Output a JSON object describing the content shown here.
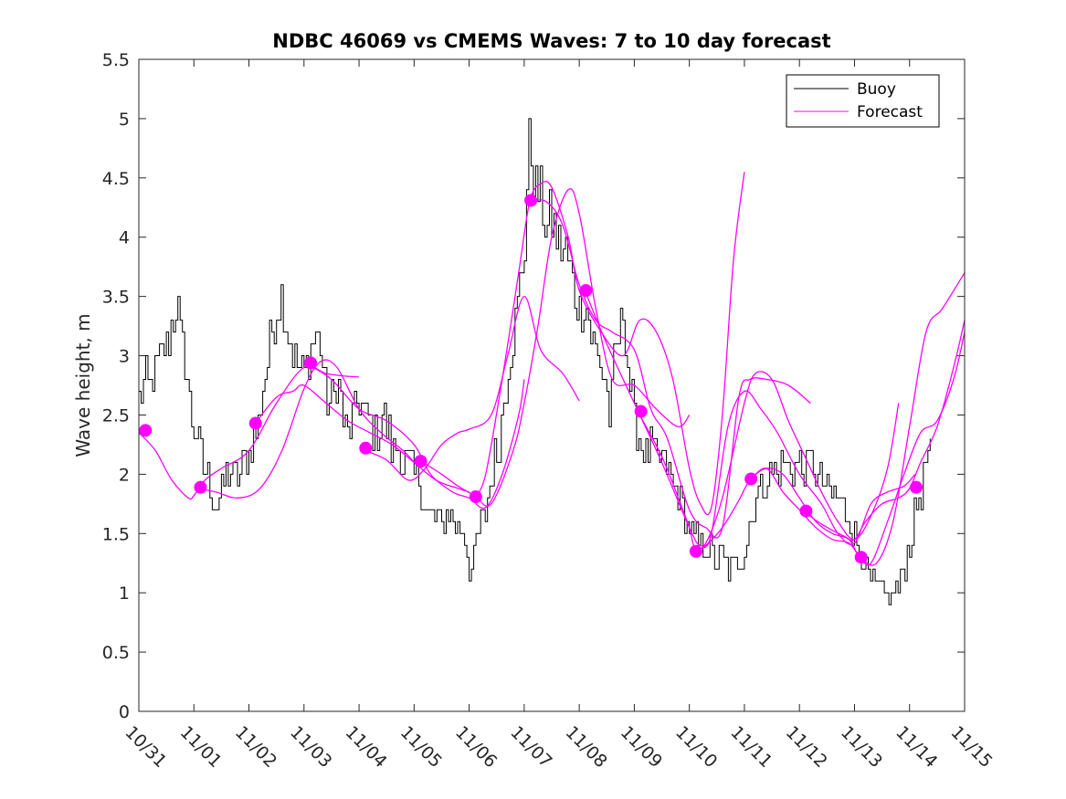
{
  "chart_data": {
    "type": "line",
    "title": "NDBC 46069 vs CMEMS Waves: 7 to 10 day forecast",
    "xlabel": "",
    "ylabel": "Wave height, m",
    "xlim": [
      0,
      15
    ],
    "ylim": [
      0,
      5.5
    ],
    "x_ticks": [
      0,
      1,
      2,
      3,
      4,
      5,
      6,
      7,
      8,
      9,
      10,
      11,
      12,
      13,
      14,
      15
    ],
    "x_tick_labels": [
      "10/31",
      "11/01",
      "11/02",
      "11/03",
      "11/04",
      "11/05",
      "11/06",
      "11/07",
      "11/08",
      "11/09",
      "11/10",
      "11/11",
      "11/12",
      "11/13",
      "11/14",
      "11/15"
    ],
    "y_ticks": [
      0,
      0.5,
      1,
      1.5,
      2,
      2.5,
      3,
      3.5,
      4,
      4.5,
      5,
      5.5
    ],
    "y_tick_labels": [
      "0",
      "0.5",
      "1",
      "1.5",
      "2",
      "2.5",
      "3",
      "3.5",
      "4",
      "4.5",
      "5",
      "5.5"
    ],
    "legend": {
      "position": "top-right",
      "entries": [
        {
          "label": "Buoy",
          "color": "#000000"
        },
        {
          "label": "Forecast",
          "color": "#ff00ff"
        }
      ]
    },
    "buoy_color": "#000000",
    "forecast_color": "#ff00ff",
    "buoy_anchors": [
      [
        0.0,
        2.6
      ],
      [
        0.1,
        2.8
      ],
      [
        0.2,
        2.75
      ],
      [
        0.35,
        2.95
      ],
      [
        0.5,
        3.1
      ],
      [
        0.6,
        3.3
      ],
      [
        0.67,
        3.5
      ],
      [
        0.75,
        3.1
      ],
      [
        0.85,
        2.9
      ],
      [
        0.95,
        2.5
      ],
      [
        1.05,
        2.3
      ],
      [
        1.15,
        2.1
      ],
      [
        1.25,
        1.95
      ],
      [
        1.35,
        1.8
      ],
      [
        1.4,
        1.7
      ],
      [
        1.5,
        1.85
      ],
      [
        1.6,
        2.0
      ],
      [
        1.75,
        1.95
      ],
      [
        1.85,
        2.05
      ],
      [
        2.0,
        2.15
      ],
      [
        2.15,
        2.4
      ],
      [
        2.3,
        2.85
      ],
      [
        2.4,
        3.2
      ],
      [
        2.5,
        3.4
      ],
      [
        2.6,
        3.55
      ],
      [
        2.7,
        3.2
      ],
      [
        2.8,
        3.0
      ],
      [
        2.9,
        2.9
      ],
      [
        3.0,
        2.85
      ],
      [
        3.1,
        3.0
      ],
      [
        3.2,
        3.2
      ],
      [
        3.3,
        3.1
      ],
      [
        3.4,
        2.6
      ],
      [
        3.5,
        2.6
      ],
      [
        3.6,
        2.8
      ],
      [
        3.7,
        2.5
      ],
      [
        3.8,
        2.3
      ],
      [
        3.9,
        2.5
      ],
      [
        4.0,
        2.6
      ],
      [
        4.1,
        2.5
      ],
      [
        4.2,
        2.4
      ],
      [
        4.3,
        2.3
      ],
      [
        4.4,
        2.5
      ],
      [
        4.5,
        2.4
      ],
      [
        4.6,
        2.2
      ],
      [
        4.7,
        2.2
      ],
      [
        4.8,
        2.1
      ],
      [
        4.9,
        2.1
      ],
      [
        5.0,
        2.0
      ],
      [
        5.1,
        1.9
      ],
      [
        5.2,
        1.7
      ],
      [
        5.3,
        1.6
      ],
      [
        5.4,
        1.65
      ],
      [
        5.5,
        1.55
      ],
      [
        5.6,
        1.75
      ],
      [
        5.7,
        1.6
      ],
      [
        5.8,
        1.5
      ],
      [
        5.9,
        1.5
      ],
      [
        6.0,
        1.2
      ],
      [
        6.05,
        1.15
      ],
      [
        6.1,
        1.35
      ],
      [
        6.2,
        1.55
      ],
      [
        6.3,
        1.7
      ],
      [
        6.4,
        2.0
      ],
      [
        6.5,
        2.2
      ],
      [
        6.6,
        2.5
      ],
      [
        6.7,
        2.9
      ],
      [
        6.8,
        3.2
      ],
      [
        6.9,
        3.5
      ],
      [
        7.0,
        4.0
      ],
      [
        7.05,
        4.5
      ],
      [
        7.1,
        4.8
      ],
      [
        7.15,
        4.6
      ],
      [
        7.2,
        4.4
      ],
      [
        7.3,
        4.3
      ],
      [
        7.4,
        4.05
      ],
      [
        7.5,
        4.1
      ],
      [
        7.6,
        3.95
      ],
      [
        7.7,
        3.9
      ],
      [
        7.8,
        3.8
      ],
      [
        7.9,
        3.5
      ],
      [
        8.0,
        3.4
      ],
      [
        8.1,
        3.5
      ],
      [
        8.2,
        3.2
      ],
      [
        8.3,
        3.05
      ],
      [
        8.4,
        2.9
      ],
      [
        8.5,
        2.7
      ],
      [
        8.55,
        2.4
      ],
      [
        8.6,
        2.8
      ],
      [
        8.7,
        3.1
      ],
      [
        8.8,
        3.4
      ],
      [
        8.9,
        2.8
      ],
      [
        9.0,
        2.45
      ],
      [
        9.1,
        2.3
      ],
      [
        9.2,
        2.2
      ],
      [
        9.3,
        2.25
      ],
      [
        9.4,
        2.1
      ],
      [
        9.5,
        2.15
      ],
      [
        9.6,
        2.0
      ],
      [
        9.7,
        1.9
      ],
      [
        9.8,
        1.8
      ],
      [
        9.9,
        1.65
      ],
      [
        10.0,
        1.55
      ],
      [
        10.1,
        1.45
      ],
      [
        10.2,
        1.4
      ],
      [
        10.3,
        1.35
      ],
      [
        10.4,
        1.35
      ],
      [
        10.5,
        1.25
      ],
      [
        10.6,
        1.3
      ],
      [
        10.7,
        1.2
      ],
      [
        10.8,
        1.25
      ],
      [
        10.9,
        1.3
      ],
      [
        11.0,
        1.4
      ],
      [
        11.1,
        1.6
      ],
      [
        11.2,
        1.8
      ],
      [
        11.3,
        1.9
      ],
      [
        11.4,
        2.0
      ],
      [
        11.5,
        2.05
      ],
      [
        11.6,
        2.0
      ],
      [
        11.7,
        2.1
      ],
      [
        11.8,
        2.0
      ],
      [
        11.9,
        2.05
      ],
      [
        12.0,
        2.1
      ],
      [
        12.1,
        2.0
      ],
      [
        12.2,
        2.15
      ],
      [
        12.3,
        2.0
      ],
      [
        12.4,
        1.9
      ],
      [
        12.5,
        1.85
      ],
      [
        12.6,
        1.8
      ],
      [
        12.7,
        1.85
      ],
      [
        12.8,
        1.7
      ],
      [
        12.9,
        1.6
      ],
      [
        13.0,
        1.5
      ],
      [
        13.1,
        1.35
      ],
      [
        13.2,
        1.2
      ],
      [
        13.3,
        1.1
      ],
      [
        13.4,
        1.05
      ],
      [
        13.5,
        1.0
      ],
      [
        13.6,
        0.98
      ],
      [
        13.65,
        0.9
      ],
      [
        13.7,
        1.0
      ],
      [
        13.8,
        1.05
      ],
      [
        13.9,
        1.2
      ],
      [
        14.0,
        1.4
      ],
      [
        14.1,
        1.65
      ],
      [
        14.2,
        1.85
      ],
      [
        14.3,
        2.1
      ],
      [
        14.4,
        2.2
      ]
    ],
    "forecast_series": [
      {
        "name": "run1",
        "x": [
          0,
          0.3,
          0.6,
          0.9,
          1.0,
          1.2,
          1.5,
          2.0,
          2.5,
          3.0,
          3.4,
          3.7,
          4.0
        ],
        "y": [
          2.35,
          2.2,
          1.95,
          1.8,
          1.82,
          1.95,
          2.05,
          2.2,
          2.6,
          2.9,
          2.85,
          2.83,
          2.82
        ]
      },
      {
        "name": "run2",
        "x": [
          1.1,
          1.4,
          1.8,
          2.2,
          2.6,
          3.0,
          3.3,
          3.6,
          4.0,
          4.4,
          4.8,
          5.0
        ],
        "y": [
          1.88,
          1.85,
          1.8,
          1.88,
          2.2,
          2.72,
          2.95,
          2.9,
          2.55,
          2.35,
          2.2,
          2.1
        ]
      },
      {
        "name": "run3",
        "x": [
          2.1,
          2.5,
          2.8,
          3.0,
          3.4,
          3.8,
          4.2,
          4.6,
          5.0,
          5.4,
          5.8,
          6.0
        ],
        "y": [
          2.42,
          2.65,
          2.7,
          2.75,
          2.6,
          2.45,
          2.35,
          2.25,
          2.1,
          1.95,
          1.88,
          1.85
        ]
      },
      {
        "name": "run4",
        "x": [
          3.1,
          3.5,
          4.0,
          4.5,
          5.0,
          5.3,
          5.7,
          6.0,
          6.3,
          6.6,
          6.9,
          7.0
        ],
        "y": [
          2.92,
          2.8,
          2.55,
          2.45,
          2.25,
          2.0,
          1.85,
          1.8,
          1.72,
          2.0,
          2.5,
          2.8
        ]
      },
      {
        "name": "run5",
        "x": [
          4.1,
          4.5,
          4.9,
          5.2,
          5.5,
          5.8,
          6.0,
          6.4,
          6.7,
          7.0,
          7.3,
          7.7,
          8.0
        ],
        "y": [
          2.2,
          2.12,
          1.95,
          2.05,
          2.25,
          2.35,
          2.38,
          2.5,
          3.0,
          3.5,
          3.05,
          2.85,
          2.62
        ]
      },
      {
        "name": "run6",
        "x": [
          5.1,
          5.5,
          5.8,
          6.1,
          6.4,
          6.8,
          7.0,
          7.25,
          7.5,
          7.8,
          8.0,
          8.3,
          8.6,
          9.0,
          9.4,
          9.8,
          10.0
        ],
        "y": [
          2.12,
          2.0,
          1.9,
          1.82,
          1.75,
          2.2,
          2.6,
          3.25,
          4.0,
          4.4,
          4.2,
          3.4,
          2.8,
          2.75,
          2.55,
          2.4,
          2.5
        ]
      },
      {
        "name": "run7",
        "x": [
          6.1,
          6.3,
          6.6,
          6.9,
          7.1,
          7.3,
          7.5,
          7.8,
          8.0,
          8.4,
          8.8,
          9.1,
          9.4,
          9.7,
          10.0,
          10.2,
          10.4,
          10.6,
          10.8,
          11.0
        ],
        "y": [
          1.8,
          2.0,
          2.8,
          3.7,
          4.3,
          4.45,
          4.42,
          4.0,
          3.55,
          3.2,
          3.0,
          3.3,
          3.2,
          2.8,
          2.05,
          1.75,
          1.72,
          2.5,
          3.8,
          4.55
        ]
      },
      {
        "name": "run8",
        "x": [
          7.1,
          7.4,
          7.7,
          8.0,
          8.3,
          8.6,
          9.0,
          9.3,
          9.6,
          10.0,
          10.3,
          10.6,
          10.9,
          11.1,
          11.4,
          11.8,
          12.2
        ],
        "y": [
          4.3,
          4.3,
          4.1,
          3.6,
          3.3,
          3.2,
          3.05,
          2.55,
          2.3,
          1.7,
          1.55,
          1.55,
          2.65,
          2.8,
          2.8,
          2.75,
          2.6
        ]
      },
      {
        "name": "run9",
        "x": [
          8.1,
          8.5,
          9.0,
          9.5,
          10.0,
          10.2,
          10.4,
          10.7,
          11.0,
          11.3,
          11.6,
          12.0,
          12.4,
          12.7,
          13.0,
          13.3,
          13.6,
          13.9,
          14.1
        ],
        "y": [
          3.55,
          3.1,
          2.6,
          2.1,
          1.55,
          1.4,
          1.5,
          2.4,
          2.7,
          2.55,
          2.35,
          2.0,
          1.75,
          1.5,
          1.42,
          1.75,
          1.85,
          1.9,
          2.0
        ]
      },
      {
        "name": "run10",
        "x": [
          9.1,
          9.5,
          9.8,
          10.0,
          10.1,
          10.3,
          10.6,
          11.0,
          11.2,
          11.5,
          11.8,
          12.1,
          12.4,
          12.7,
          13.0,
          13.3,
          13.6,
          13.8
        ],
        "y": [
          2.5,
          2.15,
          1.8,
          1.55,
          1.38,
          1.42,
          1.8,
          2.6,
          2.85,
          2.8,
          2.45,
          2.15,
          1.85,
          1.6,
          1.45,
          1.65,
          2.05,
          2.6
        ]
      },
      {
        "name": "run11",
        "x": [
          10.1,
          10.3,
          10.6,
          10.9,
          11.1,
          11.4,
          11.7,
          12.0,
          12.3,
          12.6,
          12.9,
          13.1,
          13.4,
          13.7,
          14.0,
          14.3,
          14.6,
          15.0
        ],
        "y": [
          1.35,
          1.4,
          1.55,
          1.78,
          1.95,
          2.05,
          2.0,
          1.8,
          1.6,
          1.5,
          1.45,
          1.3,
          1.25,
          1.6,
          2.4,
          3.2,
          3.4,
          3.7
        ]
      },
      {
        "name": "run12",
        "x": [
          11.1,
          11.4,
          11.7,
          12.0,
          12.3,
          12.6,
          12.9,
          13.1,
          13.3,
          13.6,
          13.9,
          14.2,
          14.5,
          14.8,
          15.0
        ],
        "y": [
          1.95,
          2.05,
          1.85,
          1.7,
          1.55,
          1.45,
          1.42,
          1.3,
          1.25,
          1.6,
          2.0,
          2.35,
          2.45,
          2.8,
          3.2
        ]
      },
      {
        "name": "run13",
        "x": [
          12.1,
          12.4,
          12.8,
          13.0,
          13.2,
          13.5,
          13.8,
          14.0,
          14.2,
          14.5,
          14.8,
          15.0
        ],
        "y": [
          1.68,
          1.58,
          1.48,
          1.45,
          1.6,
          1.75,
          1.8,
          1.88,
          2.1,
          2.4,
          2.9,
          3.3
        ]
      }
    ],
    "forecast_markers": [
      {
        "x": 0.12,
        "y": 2.37
      },
      {
        "x": 1.12,
        "y": 1.89
      },
      {
        "x": 2.12,
        "y": 2.43
      },
      {
        "x": 3.12,
        "y": 2.94
      },
      {
        "x": 4.12,
        "y": 2.22
      },
      {
        "x": 5.12,
        "y": 2.11
      },
      {
        "x": 6.12,
        "y": 1.81
      },
      {
        "x": 7.12,
        "y": 4.31
      },
      {
        "x": 8.12,
        "y": 3.55
      },
      {
        "x": 9.12,
        "y": 2.53
      },
      {
        "x": 10.12,
        "y": 1.35
      },
      {
        "x": 11.12,
        "y": 1.96
      },
      {
        "x": 12.12,
        "y": 1.69
      },
      {
        "x": 13.12,
        "y": 1.3
      },
      {
        "x": 14.12,
        "y": 1.89
      }
    ]
  }
}
